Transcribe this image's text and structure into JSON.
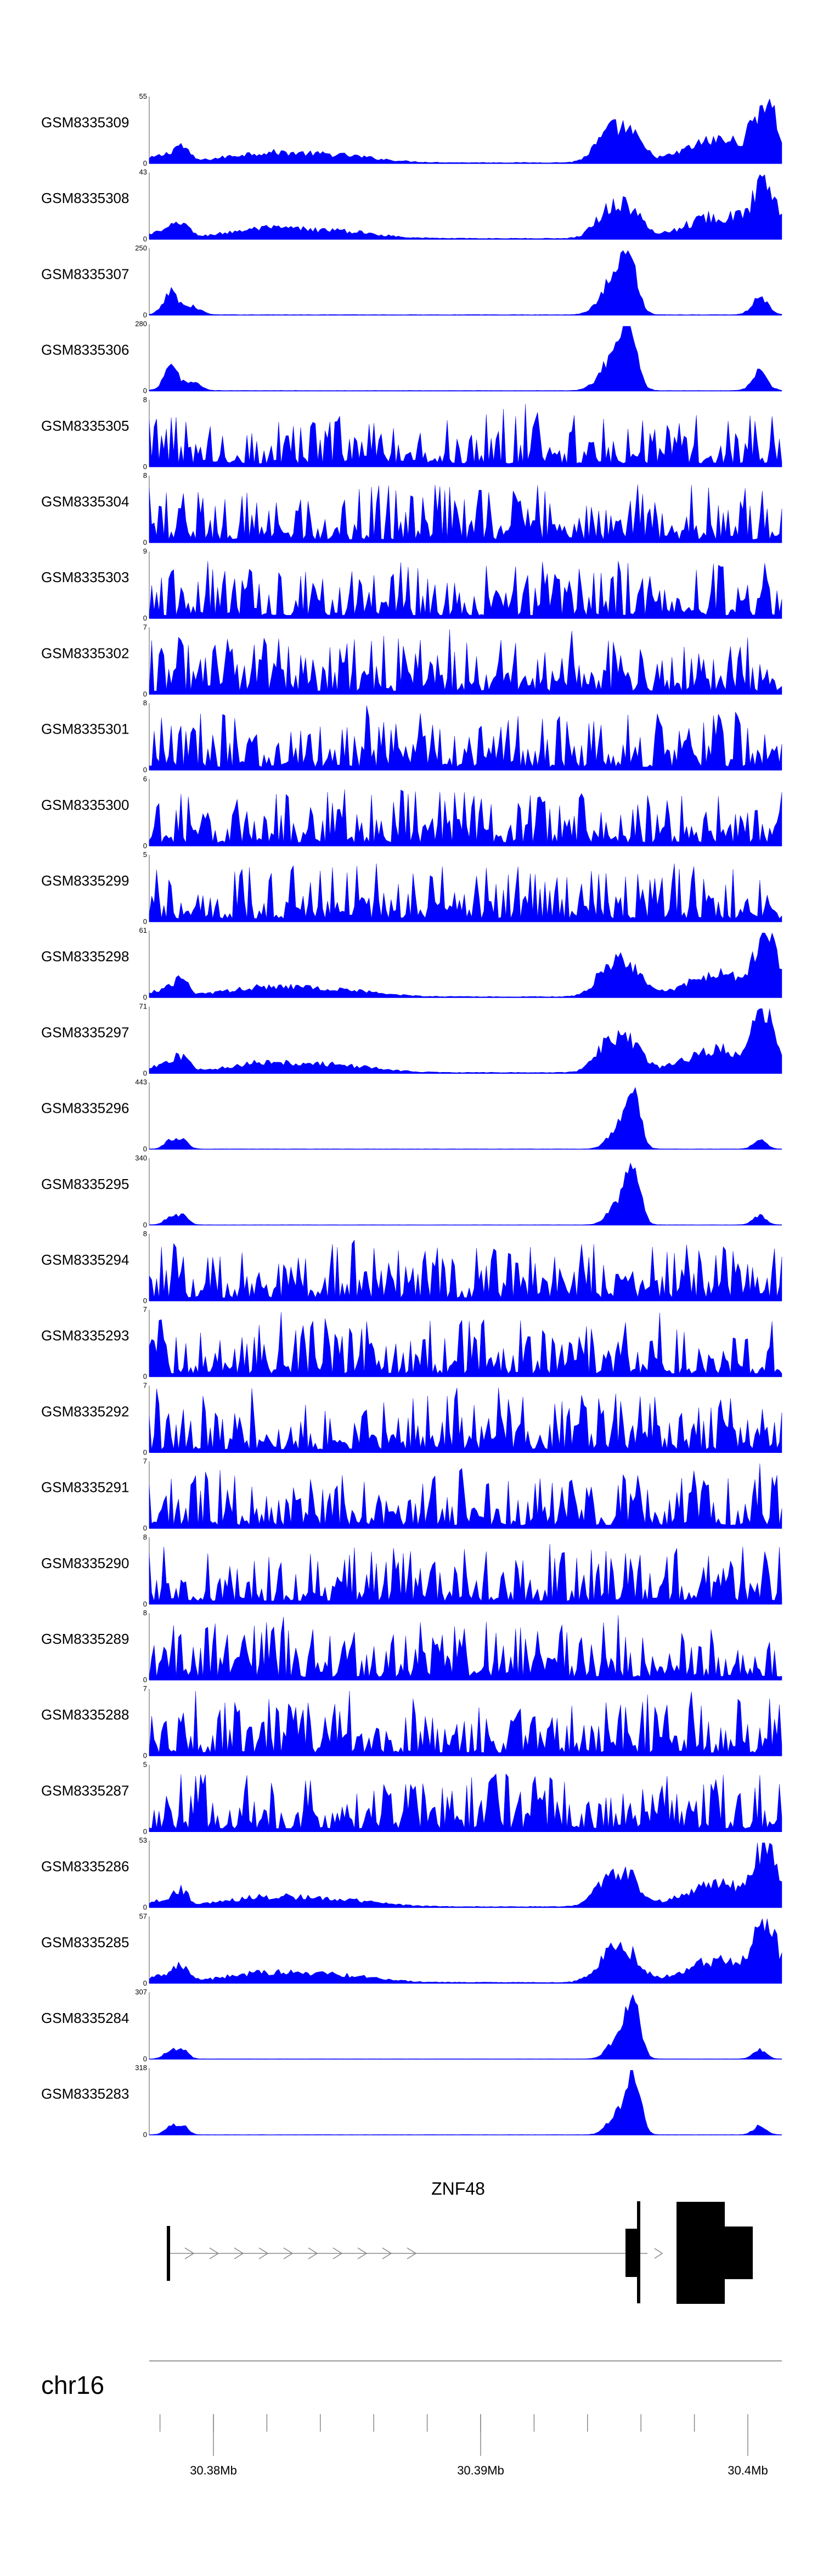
{
  "chart_data": {
    "type": "area",
    "chromosome": "chr16",
    "x_ticks": [
      {
        "value": 30.38,
        "label": "30.38Mb"
      },
      {
        "value": 30.39,
        "label": "30.39Mb"
      },
      {
        "value": 30.4,
        "label": "30.4Mb"
      }
    ],
    "gene": {
      "name": "ZNF48",
      "strand": "+"
    },
    "tracks": [
      {
        "name": "GSM8335309",
        "ymax": 55,
        "ymin": 0,
        "pattern": "H"
      },
      {
        "name": "GSM8335308",
        "ymax": 43,
        "ymin": 0,
        "pattern": "H"
      },
      {
        "name": "GSM8335307",
        "ymax": 250,
        "ymin": 0,
        "pattern": "M"
      },
      {
        "name": "GSM8335306",
        "ymax": 280,
        "ymin": 0,
        "pattern": "M"
      },
      {
        "name": "GSM8335305",
        "ymax": 8,
        "ymin": 0,
        "pattern": "N"
      },
      {
        "name": "GSM8335304",
        "ymax": 8,
        "ymin": 0,
        "pattern": "N"
      },
      {
        "name": "GSM8335303",
        "ymax": 9,
        "ymin": 0,
        "pattern": "N"
      },
      {
        "name": "GSM8335302",
        "ymax": 7,
        "ymin": 0,
        "pattern": "N"
      },
      {
        "name": "GSM8335301",
        "ymax": 8,
        "ymin": 0,
        "pattern": "N"
      },
      {
        "name": "GSM8335300",
        "ymax": 6,
        "ymin": 0,
        "pattern": "N"
      },
      {
        "name": "GSM8335299",
        "ymax": 5,
        "ymin": 0,
        "pattern": "N"
      },
      {
        "name": "GSM8335298",
        "ymax": 61,
        "ymin": 0,
        "pattern": "H"
      },
      {
        "name": "GSM8335297",
        "ymax": 71,
        "ymin": 0,
        "pattern": "H"
      },
      {
        "name": "GSM8335296",
        "ymax": 443,
        "ymin": 0,
        "pattern": "P"
      },
      {
        "name": "GSM8335295",
        "ymax": 340,
        "ymin": 0,
        "pattern": "P"
      },
      {
        "name": "GSM8335294",
        "ymax": 8,
        "ymin": 0,
        "pattern": "N"
      },
      {
        "name": "GSM8335293",
        "ymax": 7,
        "ymin": 0,
        "pattern": "N"
      },
      {
        "name": "GSM8335292",
        "ymax": 7,
        "ymin": 0,
        "pattern": "N"
      },
      {
        "name": "GSM8335291",
        "ymax": 7,
        "ymin": 0,
        "pattern": "N"
      },
      {
        "name": "GSM8335290",
        "ymax": 8,
        "ymin": 0,
        "pattern": "N"
      },
      {
        "name": "GSM8335289",
        "ymax": 8,
        "ymin": 0,
        "pattern": "N"
      },
      {
        "name": "GSM8335288",
        "ymax": 7,
        "ymin": 0,
        "pattern": "N"
      },
      {
        "name": "GSM8335287",
        "ymax": 5,
        "ymin": 0,
        "pattern": "N"
      },
      {
        "name": "GSM8335286",
        "ymax": 53,
        "ymin": 0,
        "pattern": "H"
      },
      {
        "name": "GSM8335285",
        "ymax": 57,
        "ymin": 0,
        "pattern": "H"
      },
      {
        "name": "GSM8335284",
        "ymax": 307,
        "ymin": 0,
        "pattern": "P"
      },
      {
        "name": "GSM8335283",
        "ymax": 318,
        "ymin": 0,
        "pattern": "P"
      }
    ]
  },
  "colors": {
    "signal": "#0000ff",
    "gene": "#000000",
    "axis": "#555555",
    "background": "#ffffff"
  }
}
